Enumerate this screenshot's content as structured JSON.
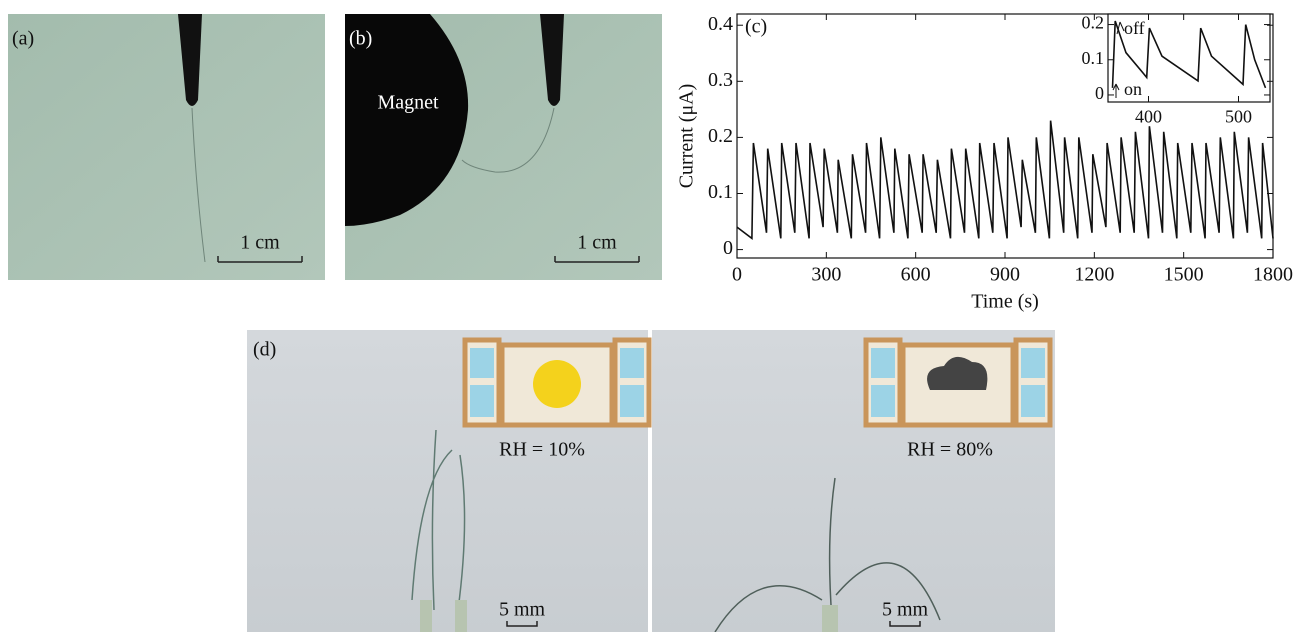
{
  "panels": {
    "a": {
      "label": "(a)",
      "scale_bar": "1 cm"
    },
    "b": {
      "label": "(b)",
      "magnet": "Magnet",
      "scale_bar": "1 cm"
    },
    "d": {
      "label": "(d)",
      "left": {
        "rh": "RH = 10%",
        "scale_bar": "5 mm"
      },
      "right": {
        "rh": "RH = 80%",
        "scale_bar": "5 mm"
      }
    }
  },
  "chart_data": {
    "type": "line",
    "panel_label": "(c)",
    "x_label": "Time (s)",
    "y_label": "Current (μA)",
    "xlim": [
      0,
      1800
    ],
    "ylim": [
      -0.015,
      0.42
    ],
    "xticks": [
      0,
      300,
      600,
      900,
      1200,
      1500,
      1800
    ],
    "yticks": [
      0,
      0.1,
      0.2,
      0.3,
      0.4
    ],
    "series": [
      {
        "color": "#111111",
        "x": [
          0,
          50,
          55,
          99,
          103,
          147,
          150,
          194,
          198,
          242,
          245,
          289,
          293,
          337,
          340,
          384,
          388,
          432,
          435,
          479,
          483,
          527,
          530,
          574,
          578,
          622,
          625,
          669,
          673,
          717,
          720,
          764,
          768,
          812,
          815,
          859,
          863,
          907,
          910,
          954,
          958,
          1002,
          1005,
          1049,
          1053,
          1097,
          1100,
          1144,
          1148,
          1192,
          1195,
          1239,
          1243,
          1287,
          1290,
          1334,
          1338,
          1382,
          1385,
          1429,
          1433,
          1477,
          1480,
          1524,
          1528,
          1572,
          1575,
          1619,
          1623,
          1667,
          1670,
          1714,
          1718,
          1762,
          1765,
          1800
        ],
        "values": [
          0.04,
          0.02,
          0.19,
          0.03,
          0.18,
          0.02,
          0.19,
          0.03,
          0.19,
          0.02,
          0.19,
          0.04,
          0.18,
          0.03,
          0.16,
          0.02,
          0.17,
          0.03,
          0.19,
          0.02,
          0.2,
          0.03,
          0.18,
          0.02,
          0.17,
          0.03,
          0.17,
          0.03,
          0.16,
          0.02,
          0.18,
          0.03,
          0.18,
          0.02,
          0.19,
          0.03,
          0.19,
          0.02,
          0.2,
          0.04,
          0.16,
          0.03,
          0.2,
          0.02,
          0.23,
          0.03,
          0.2,
          0.02,
          0.2,
          0.03,
          0.17,
          0.04,
          0.19,
          0.03,
          0.2,
          0.03,
          0.21,
          0.02,
          0.22,
          0.03,
          0.21,
          0.02,
          0.19,
          0.03,
          0.19,
          0.02,
          0.19,
          0.03,
          0.2,
          0.02,
          0.21,
          0.03,
          0.2,
          0.02,
          0.19,
          0.02
        ]
      }
    ],
    "inset": {
      "type": "line",
      "xlim": [
        355,
        535
      ],
      "ylim": [
        -0.02,
        0.23
      ],
      "xticks": [
        400,
        500
      ],
      "yticks": [
        0,
        0.1,
        0.2
      ],
      "annotations": [
        "off",
        "on"
      ],
      "series": [
        {
          "color": "#111111",
          "x": [
            360,
            363,
            375,
            398,
            401,
            415,
            455,
            458,
            470,
            505,
            508,
            518,
            530
          ],
          "values": [
            0.02,
            0.21,
            0.12,
            0.05,
            0.19,
            0.11,
            0.04,
            0.19,
            0.11,
            0.03,
            0.2,
            0.1,
            0.02
          ]
        }
      ]
    }
  }
}
